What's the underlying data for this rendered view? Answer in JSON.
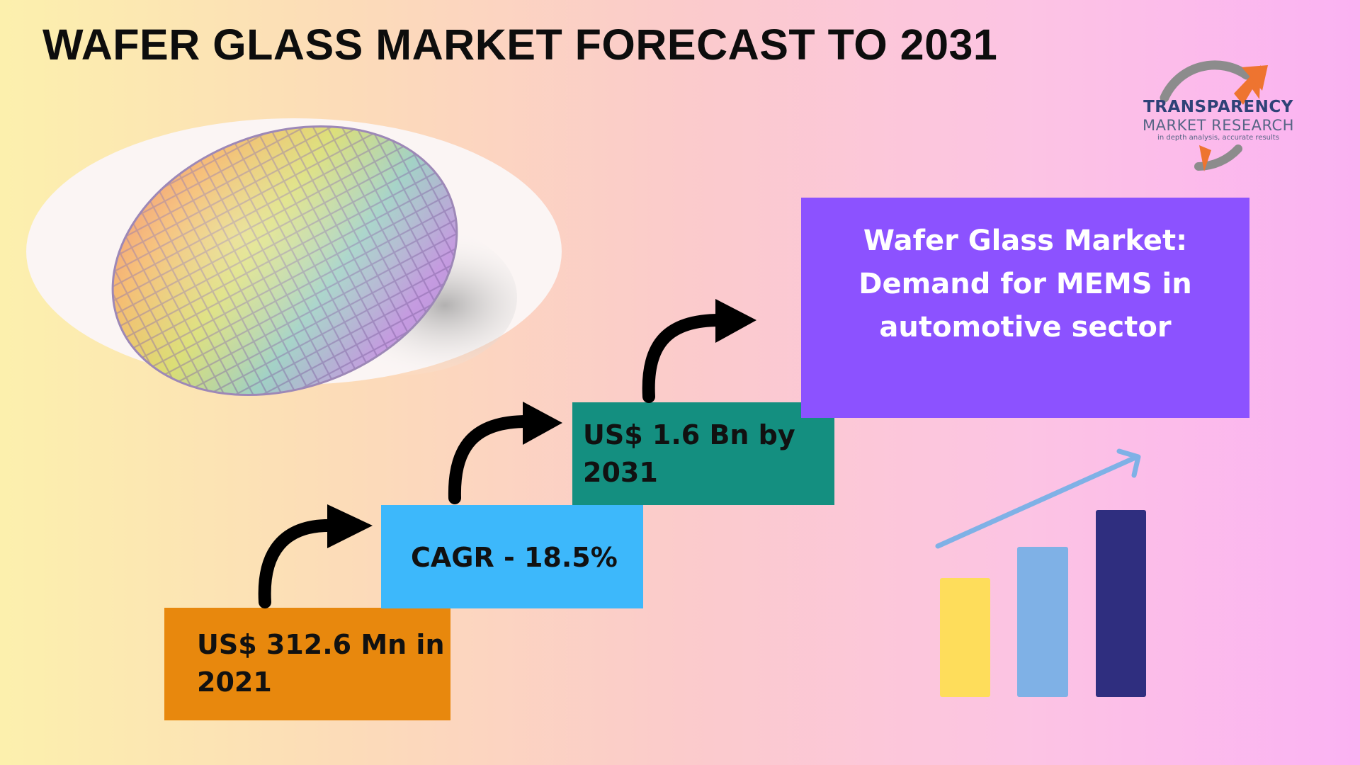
{
  "header": {
    "title": "WAFER GLASS MARKET FORECAST TO 2031"
  },
  "logo": {
    "line1": "TRANSPARENCY",
    "line2": "MARKET RESEARCH",
    "tagline": "in depth analysis, accurate results"
  },
  "steps": [
    {
      "label": "US$ 312.6 Mn in 2021",
      "color": "#e8880d"
    },
    {
      "label": "CAGR - 18.5%",
      "color": "#3db8fb"
    },
    {
      "label": "US$ 1.6 Bn by 2031",
      "color": "#148f80"
    }
  ],
  "highlight": {
    "text": "Wafer Glass Market: Demand for MEMS in automotive sector",
    "color": "#8c52ff"
  },
  "growth_icon": {
    "bar_colors": [
      "#fedd5b",
      "#7fb1e6",
      "#2f2e7f"
    ],
    "arrow_color": "#7fb1e6"
  }
}
